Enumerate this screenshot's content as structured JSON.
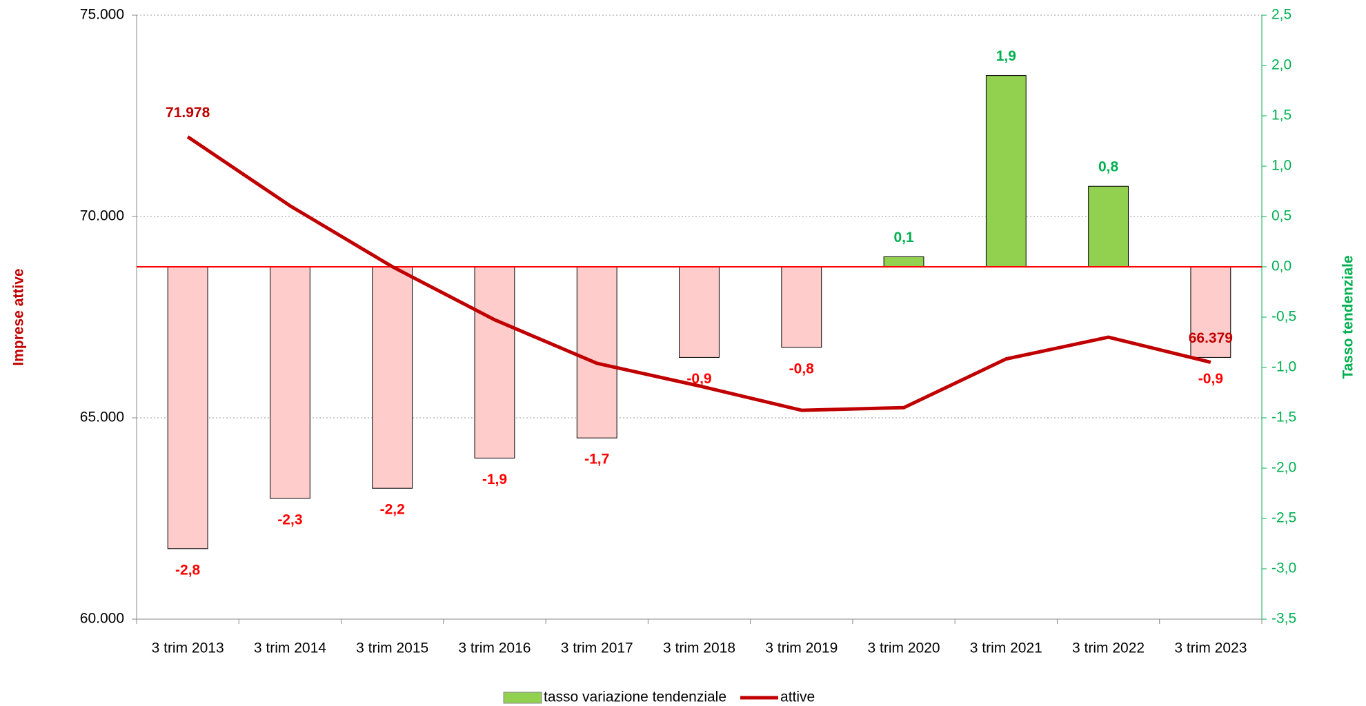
{
  "chart_data": {
    "type": "bar-line",
    "categories": [
      "3 trim 2013",
      "3 trim 2014",
      "3 trim 2015",
      "3 trim 2016",
      "3 trim 2017",
      "3 trim 2018",
      "3 trim 2019",
      "3 trim 2020",
      "3 trim 2021",
      "3 trim 2022",
      "3 trim 2023"
    ],
    "ylabel": "Imprese attive",
    "y2label": "Tasso tendenziale",
    "ylim": [
      60000,
      75000
    ],
    "yticks": [
      {
        "value": 60000,
        "label": "60.000"
      },
      {
        "value": 65000,
        "label": "65.000"
      },
      {
        "value": 70000,
        "label": "70.000"
      },
      {
        "value": 75000,
        "label": "75.000"
      }
    ],
    "y2lim": [
      -3.5,
      2.5
    ],
    "y2ticks": [
      {
        "value": -3.5,
        "label": "-3,5"
      },
      {
        "value": -3,
        "label": "-3,0"
      },
      {
        "value": -2.5,
        "label": "-2,5"
      },
      {
        "value": -2,
        "label": "-2,0"
      },
      {
        "value": -1.5,
        "label": "-1,5"
      },
      {
        "value": -1,
        "label": "-1,0"
      },
      {
        "value": -0.5,
        "label": "-0,5"
      },
      {
        "value": 0,
        "label": "0,0"
      },
      {
        "value": 0.5,
        "label": "0,5"
      },
      {
        "value": 1,
        "label": "1,0"
      },
      {
        "value": 1.5,
        "label": "1,5"
      },
      {
        "value": 2,
        "label": "2,0"
      },
      {
        "value": 2.5,
        "label": "2,5"
      }
    ],
    "grid": true,
    "legend": "bottom",
    "series": [
      {
        "name": "tasso variazione tendenziale",
        "type": "bar",
        "axis": "y2",
        "color": "#92d050",
        "negative_color": "#ffcccc",
        "label_color": "#00b050",
        "negative_label_color": "#ff0000",
        "values": [
          -2.8,
          -2.3,
          -2.2,
          -1.9,
          -1.7,
          -0.9,
          -0.8,
          0.1,
          1.9,
          0.8,
          -0.9
        ],
        "value_labels": [
          "-2,8",
          "-2,3",
          "-2,2",
          "-1,9",
          "-1,7",
          "-0,9",
          "-0,8",
          "0,1",
          "1,9",
          "0,8",
          "-0,9"
        ]
      },
      {
        "name": "attive",
        "type": "line",
        "color": "#c00000",
        "values": [
          71978,
          70266,
          68753,
          67435,
          66354,
          65792,
          65187,
          65252,
          66462,
          67003,
          66379
        ],
        "value_labels": [
          "71.978",
          null,
          null,
          null,
          null,
          null,
          null,
          null,
          null,
          null,
          "66.379"
        ]
      }
    ]
  }
}
